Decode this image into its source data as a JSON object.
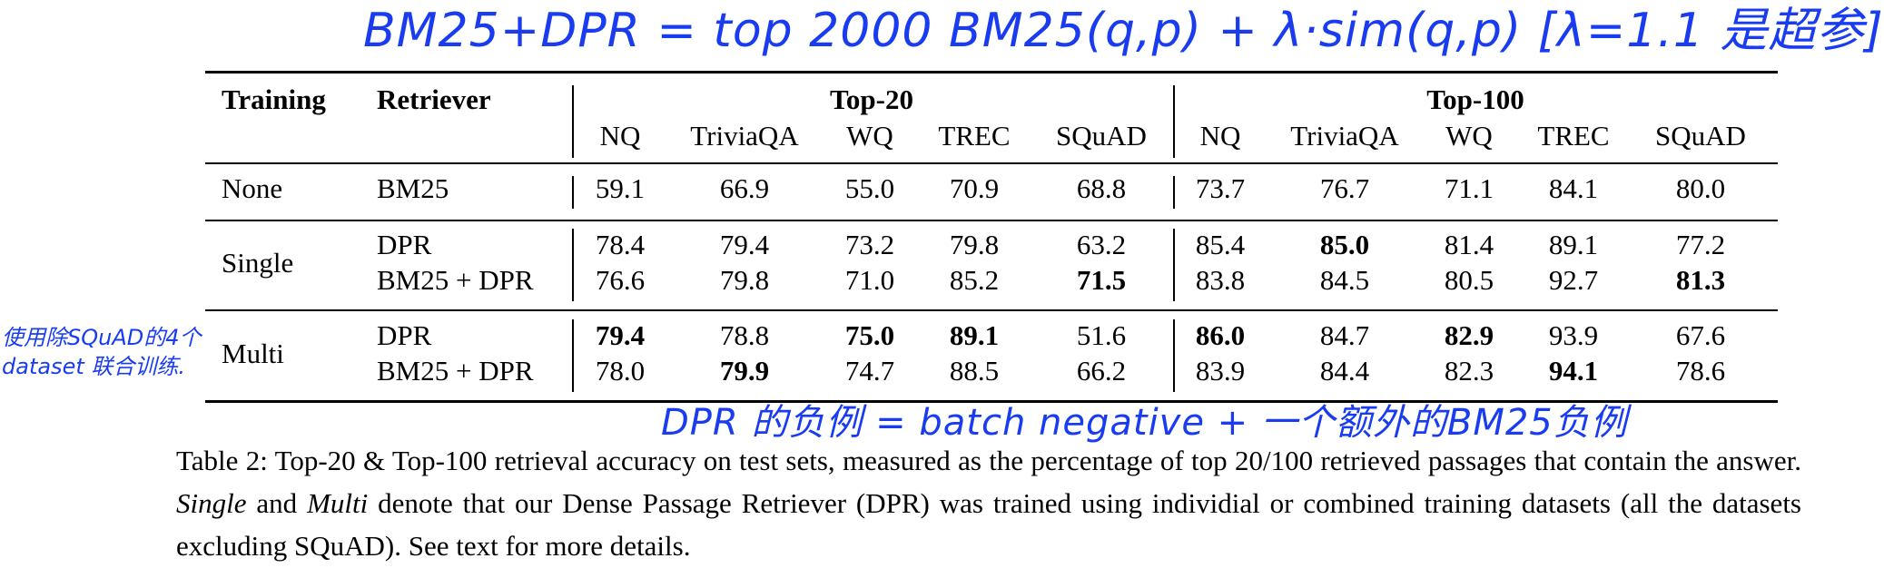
{
  "annotations": {
    "top": "BM25+DPR = top 2000 BM25(q,p) + λ·sim(q,p)   [λ=1.1 是超参]",
    "left_line1": "使用除SQuAD的4个",
    "left_line2": "dataset 联合训练.",
    "bottom": "DPR 的负例 = batch negative + 一个额外的BM25负例"
  },
  "table": {
    "header": {
      "training": "Training",
      "retriever": "Retriever",
      "top20": "Top-20",
      "top100": "Top-100",
      "datasets": [
        "NQ",
        "TriviaQA",
        "WQ",
        "TREC",
        "SQuAD"
      ]
    },
    "rows": [
      {
        "training": "None",
        "retriever": "BM25",
        "top20": [
          "59.1",
          "66.9",
          "55.0",
          "70.9",
          "68.8"
        ],
        "top100": [
          "73.7",
          "76.7",
          "71.1",
          "84.1",
          "80.0"
        ],
        "bold20": [
          false,
          false,
          false,
          false,
          false
        ],
        "bold100": [
          false,
          false,
          false,
          false,
          false
        ]
      },
      {
        "training": "Single",
        "retriever": "DPR",
        "top20": [
          "78.4",
          "79.4",
          "73.2",
          "79.8",
          "63.2"
        ],
        "top100": [
          "85.4",
          "85.0",
          "81.4",
          "89.1",
          "77.2"
        ],
        "bold20": [
          false,
          false,
          false,
          false,
          false
        ],
        "bold100": [
          false,
          true,
          false,
          false,
          false
        ]
      },
      {
        "training": "",
        "retriever": "BM25 + DPR",
        "top20": [
          "76.6",
          "79.8",
          "71.0",
          "85.2",
          "71.5"
        ],
        "top100": [
          "83.8",
          "84.5",
          "80.5",
          "92.7",
          "81.3"
        ],
        "bold20": [
          false,
          false,
          false,
          false,
          true
        ],
        "bold100": [
          false,
          false,
          false,
          false,
          true
        ]
      },
      {
        "training": "Multi",
        "retriever": "DPR",
        "top20": [
          "79.4",
          "78.8",
          "75.0",
          "89.1",
          "51.6"
        ],
        "top100": [
          "86.0",
          "84.7",
          "82.9",
          "93.9",
          "67.6"
        ],
        "bold20": [
          true,
          false,
          true,
          true,
          false
        ],
        "bold100": [
          true,
          false,
          true,
          false,
          false
        ]
      },
      {
        "training": "",
        "retriever": "BM25 + DPR",
        "top20": [
          "78.0",
          "79.9",
          "74.7",
          "88.5",
          "66.2"
        ],
        "top100": [
          "83.9",
          "84.4",
          "82.3",
          "94.1",
          "78.6"
        ],
        "bold20": [
          false,
          true,
          false,
          false,
          false
        ],
        "bold100": [
          false,
          false,
          false,
          true,
          false
        ]
      }
    ]
  },
  "caption": {
    "part1": "Table 2:  Top-20 & Top-100 retrieval accuracy on test sets, measured as the percentage of top 20/100 retrieved passages that contain the answer. ",
    "single": "Single",
    "and": " and ",
    "multi": "Multi",
    "part2": " denote that our Dense Passage Retriever (DPR) was trained using individial or combined training datasets (all the datasets excluding SQuAD). See text for more details."
  }
}
